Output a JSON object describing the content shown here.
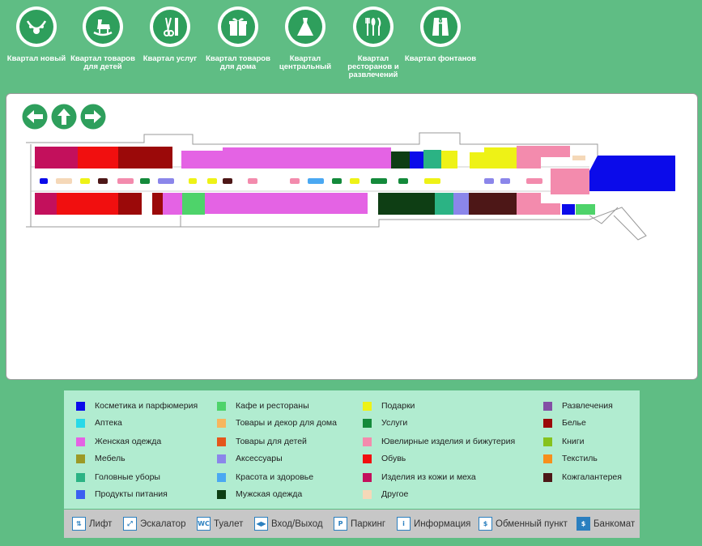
{
  "quarters": [
    {
      "label": "Квартал новый",
      "icon": "necklace-icon"
    },
    {
      "label": "Квартал товаров для детей",
      "icon": "rocking-horse-icon"
    },
    {
      "label": "Квартал услуг",
      "icon": "scissors-comb-icon"
    },
    {
      "label": "Квартал товаров для дома",
      "icon": "gift-box-icon"
    },
    {
      "label": "Квартал центральный",
      "icon": "dress-icon"
    },
    {
      "label": "Квартал ресторанов и развлечений",
      "icon": "cutlery-icon"
    },
    {
      "label": "Квартал фонтанов",
      "icon": "tuxedo-icon"
    }
  ],
  "nav": {
    "left": "arrow-left-icon",
    "up": "arrow-up-icon",
    "right": "arrow-right-icon"
  },
  "legend": [
    {
      "label": "Косметика и парфюмерия",
      "color": "#0b0bea"
    },
    {
      "label": "Аптека",
      "color": "#27d9e8"
    },
    {
      "label": "Женская одежда",
      "color": "#e463e4"
    },
    {
      "label": "Мебель",
      "color": "#9c9a26"
    },
    {
      "label": "Головные уборы",
      "color": "#2bb384"
    },
    {
      "label": "Продукты питания",
      "color": "#3b5ff1"
    },
    {
      "label": "Кафе и рестораны",
      "color": "#4ed36a"
    },
    {
      "label": "Товары и декор для дома",
      "color": "#f7b65e"
    },
    {
      "label": "Товары для детей",
      "color": "#e4561b"
    },
    {
      "label": "Аксессуары",
      "color": "#8b86ea"
    },
    {
      "label": "Красота и здоровье",
      "color": "#4aa8f2"
    },
    {
      "label": "Мужская одежда",
      "color": "#0e3e14"
    },
    {
      "label": "Подарки",
      "color": "#eef216"
    },
    {
      "label": "Услуги",
      "color": "#148a3b"
    },
    {
      "label": "Ювелирные изделия и бижутерия",
      "color": "#f38bad"
    },
    {
      "label": "Обувь",
      "color": "#f10f0f"
    },
    {
      "label": "Изделия из кожи и меха",
      "color": "#c3105c"
    },
    {
      "label": "Другое",
      "color": "#f5d8b8"
    },
    {
      "label": "Развлечения",
      "color": "#834fa5"
    },
    {
      "label": "Белье",
      "color": "#9b0909"
    },
    {
      "label": "Книги",
      "color": "#86c21d"
    },
    {
      "label": "Текстиль",
      "color": "#f78f1c"
    },
    {
      "label": "Кожгалантерея",
      "color": "#4d1717"
    }
  ],
  "facilities": [
    {
      "label": "Лифт",
      "icon": "elevator-icon",
      "glyph": "⇅"
    },
    {
      "label": "Эскалатор",
      "icon": "escalator-icon",
      "glyph": "⤢"
    },
    {
      "label": "Туалет",
      "icon": "toilet-icon",
      "glyph": "WC"
    },
    {
      "label": "Вход/Выход",
      "icon": "entrance-exit-icon",
      "glyph": "◀▶"
    },
    {
      "label": "Паркинг",
      "icon": "parking-icon",
      "glyph": "P"
    },
    {
      "label": "Информация",
      "icon": "information-icon",
      "glyph": "i"
    },
    {
      "label": "Обменный пункт",
      "icon": "currency-exchange-icon",
      "glyph": "$"
    },
    {
      "label": "Банкомат",
      "icon": "atm-icon",
      "glyph": "$"
    }
  ]
}
